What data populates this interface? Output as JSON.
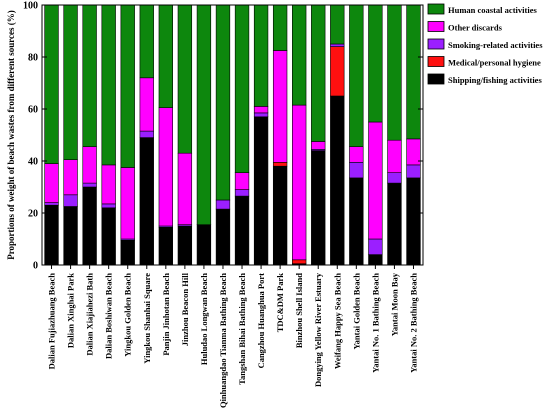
{
  "chart_data": {
    "type": "bar",
    "stacked": true,
    "title": "",
    "xlabel": "",
    "ylabel": "Proportions of weight of beach wastes from different sources (%)",
    "ylim": [
      0,
      100
    ],
    "yticks": [
      0,
      20,
      40,
      60,
      80,
      100
    ],
    "grid": false,
    "legend_position": "top-right",
    "categories": [
      "Dalian Fujiazhuang Beach",
      "Dalian Xinghai Park",
      "Dalian Xiajiahezi Bath",
      "Dalian Boshiwan Beach",
      "Yingkou Golden Beach",
      "Yingkou Shanhai Square",
      "Panjin Jinhotan Beach",
      "Jinzhou Beacon Hill",
      "Huludao Longwan Beach",
      "Qinhuangdao Tianma Bathing Beach",
      "Tangshan Bihai Bathing Beach",
      "Cangzhou Huanghua Port",
      "TDC&DM Park",
      "Binzhou Shell Island",
      "Dongying Yellow River Estuary",
      "Weifang Happy Sea Beach",
      "Yantai Golden Beach",
      "Yantai No. 1 Bathing Beach",
      "Yantai Moon Bay",
      "Yantai No. 2 Bathing Beach"
    ],
    "series": [
      {
        "name": "Shipping/fishing activities",
        "color": "#000000",
        "values": [
          23,
          22.5,
          30,
          22,
          9.5,
          49,
          14.5,
          15,
          15.5,
          21.5,
          26.5,
          57,
          38,
          0.5,
          44,
          65,
          33.5,
          4,
          31.5,
          33.5
        ]
      },
      {
        "name": "Medical/personal hygiene",
        "color": "#ff1010",
        "values": [
          0,
          0,
          0,
          0,
          0,
          0,
          0,
          0,
          0,
          0,
          0,
          0,
          1.5,
          1.5,
          0,
          19,
          0,
          0,
          0,
          0
        ]
      },
      {
        "name": "Smoking-related activities",
        "color": "#9b1fff",
        "values": [
          1,
          4.5,
          1.5,
          1.5,
          0.5,
          2.5,
          0.5,
          0.5,
          0,
          3.5,
          2.5,
          1.5,
          0,
          0,
          0.5,
          1,
          6,
          6,
          4,
          5
        ]
      },
      {
        "name": "Other discards",
        "color": "#ff00ff",
        "values": [
          15,
          13.5,
          14,
          15,
          27.5,
          20.5,
          45.5,
          27.5,
          0,
          0,
          6.5,
          2.5,
          43,
          59.5,
          3,
          0,
          6,
          45,
          12.5,
          10
        ]
      },
      {
        "name": "Human coastal activities",
        "color": "#0d870d",
        "values": [
          61,
          59.5,
          54.5,
          61.5,
          62.5,
          28,
          39.5,
          57,
          84.5,
          75,
          64.5,
          39,
          17.5,
          38.5,
          52.5,
          15,
          54.5,
          45,
          52,
          51.5
        ]
      }
    ],
    "legend_order": [
      "Human coastal activities",
      "Other discards",
      "Smoking-related activities",
      "Medical/personal hygiene",
      "Shipping/fishing activities"
    ]
  }
}
